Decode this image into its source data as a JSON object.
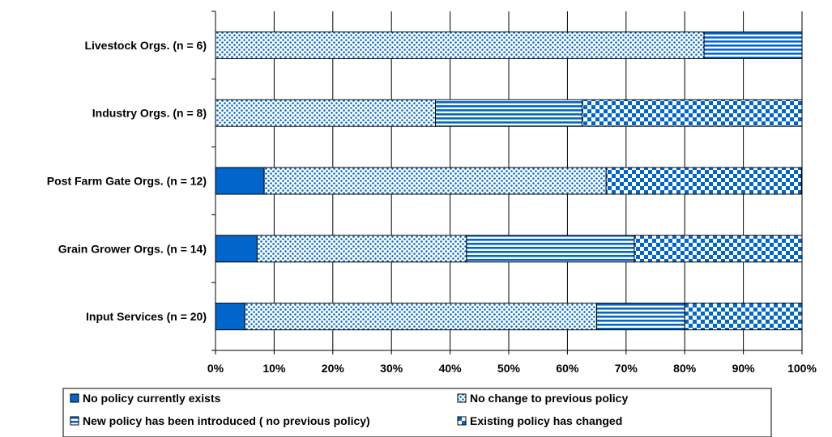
{
  "chart_data": {
    "type": "bar",
    "orientation": "horizontal",
    "stacked": "percent",
    "categories": [
      "Livestock Orgs. (n = 6)",
      "Industry Orgs. (n = 8)",
      "Post Farm Gate Orgs. (n = 12)",
      "Grain Grower Orgs. (n = 14)",
      "Input Services (n = 20)"
    ],
    "series": [
      {
        "name": "No policy currently exists",
        "values": [
          0,
          0,
          8.3,
          7.1,
          5.0
        ],
        "pattern": "solid"
      },
      {
        "name": "No change to previous policy",
        "values": [
          83.3,
          37.5,
          58.3,
          35.7,
          60.0
        ],
        "pattern": "dots"
      },
      {
        "name": "New policy has been introduced ( no previous policy)",
        "values": [
          16.7,
          25.0,
          0,
          28.6,
          15.0
        ],
        "pattern": "horizontal-stripes"
      },
      {
        "name": "Existing policy has changed",
        "values": [
          0,
          37.5,
          33.3,
          28.6,
          20.0
        ],
        "pattern": "checkerboard"
      }
    ],
    "xlim": [
      0,
      100
    ],
    "x_ticks": [
      "0%",
      "10%",
      "20%",
      "30%",
      "40%",
      "50%",
      "60%",
      "70%",
      "80%",
      "90%",
      "100%"
    ],
    "grid": "vertical",
    "legend_position": "bottom",
    "colors": {
      "primary": "#0066CC",
      "background": "#ffffff",
      "grid": "#000000"
    }
  }
}
